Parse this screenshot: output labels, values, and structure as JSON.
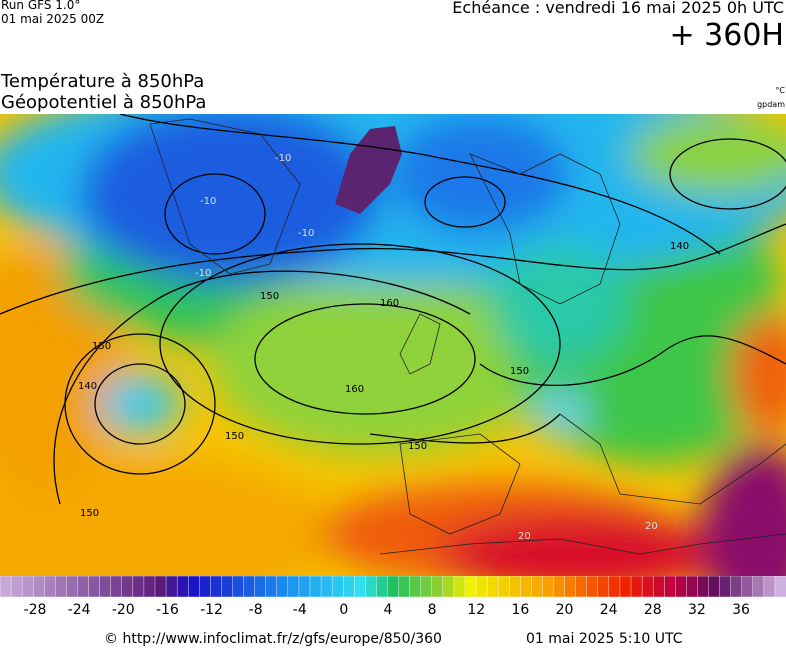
{
  "header": {
    "run": "Run GFS 1.0°",
    "run_date": "01 mai 2025 00Z",
    "valid": "Echéance : vendredi 16 mai 2025 0h UTC",
    "lead": "+ 360H",
    "title_lines": [
      "Température à 850hPa",
      "Géopotentiel à 850hPa"
    ],
    "units": [
      "°C",
      "gpdam"
    ]
  },
  "map": {
    "contour_labels": [
      "-10",
      "-10",
      "-10",
      "-10",
      "150",
      "160",
      "160",
      "150",
      "140",
      "150",
      "150",
      "150",
      "140",
      "150",
      "20",
      "20"
    ]
  },
  "colorbar": {
    "ticks": [
      -28,
      -24,
      -20,
      -16,
      -12,
      -8,
      -4,
      0,
      4,
      8,
      12,
      16,
      20,
      24,
      28,
      32,
      36
    ]
  },
  "footer": {
    "source": "© http://www.infoclimat.fr/z/gfs/europe/850/360",
    "generated": "01 mai 2025  5:10 UTC"
  }
}
